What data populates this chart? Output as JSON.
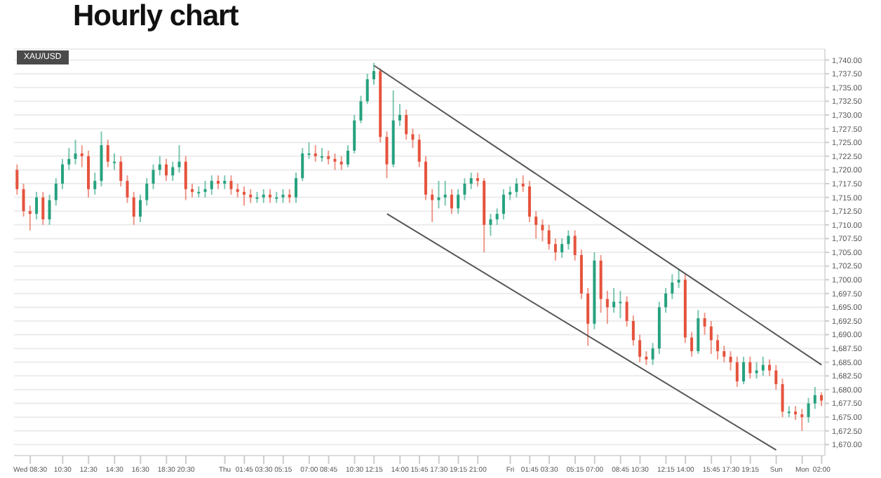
{
  "chart_data": {
    "type": "candlestick",
    "title": "Hourly chart",
    "annotations": [
      "XAU/USD"
    ],
    "categories": [
      null,
      null,
      "Wed 08:30",
      null,
      null,
      null,
      null,
      "10:30",
      null,
      null,
      null,
      "12:30",
      null,
      null,
      null,
      "14:30",
      null,
      null,
      null,
      "16:30",
      null,
      null,
      null,
      "18:30",
      null,
      null,
      "20:30",
      null,
      null,
      null,
      null,
      null,
      "Thu",
      null,
      null,
      "01:45",
      null,
      null,
      "03:30",
      null,
      null,
      "05:15",
      null,
      null,
      null,
      "07:00",
      null,
      null,
      "08:45",
      null,
      null,
      null,
      "10:30",
      null,
      null,
      "12:15",
      null,
      null,
      null,
      "14:00",
      null,
      null,
      "15:45",
      null,
      null,
      "17:30",
      null,
      null,
      "19:15",
      null,
      null,
      "21:00",
      null,
      null,
      null,
      null,
      "Fri",
      null,
      null,
      "01:45",
      null,
      null,
      "03:30",
      null,
      null,
      null,
      "05:15",
      null,
      null,
      "07:00",
      null,
      null,
      null,
      "08:45",
      null,
      null,
      "10:30",
      null,
      null,
      null,
      "12:15",
      null,
      null,
      "14:00",
      null,
      null,
      null,
      "15:45",
      null,
      null,
      "17:30",
      null,
      null,
      "19:15",
      null,
      null,
      null,
      "Sun",
      null,
      null,
      null,
      "Mon",
      null,
      null,
      "02:00"
    ],
    "ohlc": [
      [
        1720,
        1721,
        1715.5,
        1716.5
      ],
      [
        1716.5,
        1717.5,
        1711.5,
        1712.5
      ],
      [
        1712.5,
        1713.5,
        1709,
        1712
      ],
      [
        1712,
        1716,
        1711,
        1715
      ],
      [
        1715,
        1716,
        1710,
        1711
      ],
      [
        1711,
        1715.5,
        1710,
        1714.5
      ],
      [
        1714.5,
        1718.5,
        1713.5,
        1717.5
      ],
      [
        1717.5,
        1722,
        1716.5,
        1721
      ],
      [
        1721,
        1724,
        1720,
        1722
      ],
      [
        1722,
        1725.5,
        1721,
        1723
      ],
      [
        1723,
        1724.5,
        1720.5,
        1722.5
      ],
      [
        1722.5,
        1723.5,
        1715,
        1716.5
      ],
      [
        1716.5,
        1719.5,
        1715.5,
        1718
      ],
      [
        1718,
        1727,
        1717,
        1724.5
      ],
      [
        1724.5,
        1725.5,
        1720.5,
        1721.5
      ],
      [
        1721.5,
        1723,
        1720,
        1721.5
      ],
      [
        1721.5,
        1722.5,
        1717,
        1718
      ],
      [
        1718,
        1719,
        1714,
        1715
      ],
      [
        1715,
        1716,
        1710,
        1711.5
      ],
      [
        1711.5,
        1715.5,
        1710.5,
        1714.5
      ],
      [
        1714.5,
        1718.5,
        1713.5,
        1717.5
      ],
      [
        1717.5,
        1721,
        1716.5,
        1720
      ],
      [
        1720,
        1722.5,
        1719,
        1721
      ],
      [
        1721,
        1722,
        1718,
        1719
      ],
      [
        1719,
        1721.5,
        1718,
        1720.5
      ],
      [
        1720.5,
        1724.5,
        1719.5,
        1721.5
      ],
      [
        1721.5,
        1722.5,
        1714.5,
        1716.5
      ],
      [
        1716.5,
        1717.5,
        1715,
        1716
      ],
      [
        1716,
        1717,
        1715,
        1716
      ],
      [
        1716,
        1718,
        1715,
        1716.5
      ],
      [
        1716.5,
        1719,
        1715.5,
        1718
      ],
      [
        1718,
        1719,
        1716.5,
        1717.5
      ],
      [
        1717.5,
        1719,
        1716.5,
        1718
      ],
      [
        1718,
        1719,
        1715.5,
        1716.5
      ],
      [
        1716.5,
        1717.5,
        1715,
        1716
      ],
      [
        1716,
        1717,
        1713.5,
        1715.5
      ],
      [
        1715.5,
        1716.5,
        1714,
        1715
      ],
      [
        1715,
        1716,
        1714,
        1715
      ],
      [
        1715,
        1716.5,
        1714,
        1715.5
      ],
      [
        1715.5,
        1716.5,
        1714,
        1715
      ],
      [
        1715,
        1716,
        1714,
        1715
      ],
      [
        1715,
        1716.5,
        1714,
        1715.5
      ],
      [
        1715.5,
        1716.5,
        1714,
        1715
      ],
      [
        1715,
        1719.5,
        1714,
        1718.5
      ],
      [
        1718.5,
        1724,
        1718,
        1723
      ],
      [
        1723,
        1725,
        1722,
        1723
      ],
      [
        1723,
        1724.5,
        1721.5,
        1722.5
      ],
      [
        1722.5,
        1724,
        1721.5,
        1722.5
      ],
      [
        1722.5,
        1723.5,
        1721,
        1722
      ],
      [
        1722,
        1723,
        1720,
        1721.5
      ],
      [
        1721.5,
        1722.5,
        1720,
        1721
      ],
      [
        1721,
        1724.5,
        1720.5,
        1723.5
      ],
      [
        1723.5,
        1730,
        1723,
        1729
      ],
      [
        1729,
        1733.5,
        1728.5,
        1732.5
      ],
      [
        1732.5,
        1737.5,
        1732,
        1736.5
      ],
      [
        1736.5,
        1739.5,
        1735.5,
        1738
      ],
      [
        1738,
        1738.5,
        1725,
        1726
      ],
      [
        1726,
        1727,
        1718.5,
        1721
      ],
      [
        1721,
        1734.5,
        1720.5,
        1729
      ],
      [
        1729,
        1732,
        1728,
        1730
      ],
      [
        1730,
        1731,
        1725.5,
        1726.5
      ],
      [
        1726.5,
        1727.5,
        1724,
        1725.5
      ],
      [
        1725.5,
        1726.5,
        1720.5,
        1721.5
      ],
      [
        1721.5,
        1722.5,
        1714.5,
        1715.5
      ],
      [
        1715.5,
        1716.5,
        1710.5,
        1714.5
      ],
      [
        1714.5,
        1718,
        1713,
        1715
      ],
      [
        1715,
        1718,
        1713.5,
        1715.5
      ],
      [
        1715.5,
        1716.5,
        1712,
        1713
      ],
      [
        1713,
        1716.5,
        1712,
        1715.5
      ],
      [
        1715.5,
        1718.5,
        1714.5,
        1717.5
      ],
      [
        1717.5,
        1719.5,
        1716.5,
        1718.5
      ],
      [
        1718.5,
        1719.5,
        1717,
        1718
      ],
      [
        1718,
        1718.5,
        1705,
        1710
      ],
      [
        1710,
        1712,
        1708,
        1711
      ],
      [
        1711,
        1713,
        1710,
        1712
      ],
      [
        1712,
        1716.5,
        1711,
        1715.5
      ],
      [
        1715.5,
        1717,
        1714.5,
        1716
      ],
      [
        1716,
        1718.5,
        1715,
        1717.5
      ],
      [
        1717.5,
        1719,
        1716,
        1717
      ],
      [
        1717,
        1718,
        1710.5,
        1711.5
      ],
      [
        1711.5,
        1712.5,
        1707.5,
        1710
      ],
      [
        1710,
        1711,
        1707,
        1709
      ],
      [
        1709,
        1710,
        1705.5,
        1706.5
      ],
      [
        1706.5,
        1707.5,
        1703.5,
        1705
      ],
      [
        1705,
        1707.5,
        1704,
        1706.5
      ],
      [
        1706.5,
        1709,
        1705.5,
        1708
      ],
      [
        1708,
        1709,
        1703.5,
        1704.5
      ],
      [
        1704.5,
        1705.5,
        1696.5,
        1697.5
      ],
      [
        1697.5,
        1698.5,
        1688,
        1692
      ],
      [
        1692,
        1705,
        1691,
        1703.5
      ],
      [
        1703.5,
        1704.5,
        1694,
        1696.5
      ],
      [
        1696.5,
        1698,
        1692,
        1695
      ],
      [
        1695,
        1698.5,
        1694,
        1696
      ],
      [
        1696,
        1698,
        1693,
        1696
      ],
      [
        1696,
        1697,
        1691.5,
        1692.5
      ],
      [
        1692.5,
        1693.5,
        1688,
        1689
      ],
      [
        1689,
        1690,
        1685,
        1686
      ],
      [
        1686,
        1687,
        1684.5,
        1685.5
      ],
      [
        1685.5,
        1688.5,
        1684.5,
        1687.5
      ],
      [
        1687.5,
        1696,
        1686.5,
        1695
      ],
      [
        1695,
        1698.5,
        1694,
        1697.5
      ],
      [
        1697.5,
        1701,
        1696.5,
        1699.5
      ],
      [
        1699.5,
        1702,
        1698.5,
        1700
      ],
      [
        1700,
        1701,
        1688.5,
        1689.5
      ],
      [
        1689.5,
        1690.5,
        1686,
        1687
      ],
      [
        1687,
        1694.5,
        1686.5,
        1693
      ],
      [
        1693,
        1694,
        1690,
        1691.5
      ],
      [
        1691.5,
        1692.5,
        1686.5,
        1689
      ],
      [
        1689,
        1690,
        1685.5,
        1687
      ],
      [
        1687,
        1688,
        1685,
        1686
      ],
      [
        1686,
        1687,
        1683.5,
        1685
      ],
      [
        1685,
        1686,
        1680.5,
        1681.5
      ],
      [
        1681.5,
        1686,
        1681,
        1685
      ],
      [
        1685,
        1686,
        1682,
        1683
      ],
      [
        1683,
        1685,
        1682,
        1683.5
      ],
      [
        1683.5,
        1686,
        1682.5,
        1684.5
      ],
      [
        1684.5,
        1685.5,
        1682.5,
        1683.5
      ],
      [
        1683.5,
        1684.5,
        1680,
        1681
      ],
      [
        1681,
        1682,
        1675,
        1676
      ],
      [
        1676,
        1677,
        1675,
        1676
      ],
      [
        1676,
        1677,
        1674.5,
        1675.5
      ],
      [
        1675.5,
        1676.5,
        1672.5,
        1675
      ],
      [
        1675,
        1678.5,
        1674,
        1677.5
      ],
      [
        1677.5,
        1680.5,
        1676.5,
        1679
      ],
      [
        1679,
        1679.5,
        1677,
        1678
      ]
    ],
    "colors": [
      "#e5533d",
      "#e5533d",
      "#e5533d",
      "#26a17f",
      "#e5533d",
      "#26a17f",
      "#26a17f",
      "#26a17f",
      "#26a17f",
      "#26a17f",
      "#e5533d",
      "#e5533d",
      "#26a17f",
      "#26a17f",
      "#e5533d",
      "#26a17f",
      "#e5533d",
      "#e5533d",
      "#e5533d",
      "#26a17f",
      "#26a17f",
      "#26a17f",
      "#26a17f",
      "#e5533d",
      "#26a17f",
      "#26a17f",
      "#e5533d",
      "#e5533d",
      "#26a17f",
      "#26a17f",
      "#26a17f",
      "#e5533d",
      "#26a17f",
      "#e5533d",
      "#e5533d",
      "#e5533d",
      "#e5533d",
      "#26a17f",
      "#26a17f",
      "#e5533d",
      "#26a17f",
      "#26a17f",
      "#e5533d",
      "#26a17f",
      "#26a17f",
      "#26a17f",
      "#e5533d",
      "#26a17f",
      "#e5533d",
      "#e5533d",
      "#e5533d",
      "#26a17f",
      "#26a17f",
      "#26a17f",
      "#26a17f",
      "#26a17f",
      "#e5533d",
      "#e5533d",
      "#26a17f",
      "#26a17f",
      "#e5533d",
      "#e5533d",
      "#e5533d",
      "#e5533d",
      "#e5533d",
      "#26a17f",
      "#26a17f",
      "#e5533d",
      "#26a17f",
      "#26a17f",
      "#26a17f",
      "#e5533d",
      "#e5533d",
      "#26a17f",
      "#26a17f",
      "#26a17f",
      "#26a17f",
      "#26a17f",
      "#e5533d",
      "#e5533d",
      "#e5533d",
      "#e5533d",
      "#e5533d",
      "#e5533d",
      "#26a17f",
      "#26a17f",
      "#e5533d",
      "#e5533d",
      "#e5533d",
      "#26a17f",
      "#e5533d",
      "#e5533d",
      "#26a17f",
      "#26a17f",
      "#e5533d",
      "#e5533d",
      "#e5533d",
      "#e5533d",
      "#26a17f",
      "#26a17f",
      "#26a17f",
      "#26a17f",
      "#26a17f",
      "#e5533d",
      "#e5533d",
      "#26a17f",
      "#e5533d",
      "#e5533d",
      "#e5533d",
      "#e5533d",
      "#e5533d",
      "#e5533d",
      "#26a17f",
      "#e5533d",
      "#26a17f",
      "#26a17f",
      "#e5533d",
      "#e5533d",
      "#e5533d",
      "#26a17f",
      "#e5533d",
      "#e5533d",
      "#26a17f",
      "#26a17f",
      "#e5533d"
    ],
    "series": [
      {
        "type": "line",
        "color": "#555555",
        "values": [
          null,
          null,
          null,
          null,
          null,
          null,
          null,
          null,
          null,
          null,
          null,
          null,
          null,
          null,
          null,
          null,
          null,
          null,
          null,
          null,
          null,
          null,
          null,
          null,
          null,
          null,
          null,
          null,
          null,
          null,
          null,
          null,
          null,
          null,
          null,
          null,
          null,
          null,
          null,
          null,
          null,
          null,
          null,
          null,
          null,
          null,
          null,
          null,
          null,
          null,
          null,
          null,
          null,
          null,
          null,
          1739,
          null,
          null,
          null,
          null,
          null,
          null,
          null,
          null,
          null,
          null,
          null,
          null,
          null,
          null,
          null,
          null,
          null,
          null,
          null,
          null,
          null,
          null,
          null,
          null,
          null,
          null,
          null,
          null,
          null,
          null,
          null,
          null,
          null,
          null,
          null,
          null,
          null,
          null,
          null,
          null,
          null,
          null,
          null,
          null,
          null,
          null,
          null,
          null,
          null,
          null,
          null,
          null,
          null,
          null,
          null,
          null,
          null,
          null,
          null,
          null,
          null,
          null,
          null,
          null,
          null,
          null,
          null,
          null,
          1684.5
        ]
      },
      {
        "type": "line",
        "color": "#555555",
        "values": [
          null,
          null,
          null,
          null,
          null,
          null,
          null,
          null,
          null,
          null,
          null,
          null,
          null,
          null,
          null,
          null,
          null,
          null,
          null,
          null,
          null,
          null,
          null,
          null,
          null,
          null,
          null,
          null,
          null,
          null,
          null,
          null,
          null,
          null,
          null,
          null,
          null,
          null,
          null,
          null,
          null,
          null,
          null,
          null,
          null,
          null,
          null,
          null,
          null,
          null,
          null,
          null,
          null,
          null,
          null,
          null,
          null,
          1712,
          null,
          null,
          null,
          null,
          null,
          null,
          null,
          null,
          null,
          null,
          null,
          null,
          null,
          null,
          null,
          null,
          null,
          null,
          null,
          null,
          null,
          null,
          null,
          null,
          null,
          null,
          null,
          null,
          null,
          null,
          null,
          null,
          null,
          null,
          null,
          null,
          null,
          null,
          null,
          null,
          null,
          null,
          null,
          null,
          null,
          null,
          null,
          null,
          null,
          null,
          null,
          null,
          null,
          null,
          null,
          null,
          null,
          null,
          null,
          1669,
          null,
          null,
          null,
          null,
          null,
          null,
          null
        ]
      }
    ],
    "ylim": [
      1668,
      1742
    ],
    "yticks": [
      {
        "value": 1670,
        "label": "1,670.00"
      },
      {
        "value": 1672.5,
        "label": "1,672.50"
      },
      {
        "value": 1675,
        "label": "1,675.00"
      },
      {
        "value": 1677.5,
        "label": "1,677.50"
      },
      {
        "value": 1680,
        "label": "1,680.00"
      },
      {
        "value": 1682.5,
        "label": "1,682.50"
      },
      {
        "value": 1685,
        "label": "1,685.00"
      },
      {
        "value": 1687.5,
        "label": "1,687.50"
      },
      {
        "value": 1690,
        "label": "1,690.00"
      },
      {
        "value": 1692.5,
        "label": "1,692.50"
      },
      {
        "value": 1695,
        "label": "1,695.00"
      },
      {
        "value": 1697.5,
        "label": "1,697.50"
      },
      {
        "value": 1700,
        "label": "1,700.00"
      },
      {
        "value": 1702.5,
        "label": "1,702.50"
      },
      {
        "value": 1705,
        "label": "1,705.00"
      },
      {
        "value": 1707.5,
        "label": "1,707.50"
      },
      {
        "value": 1710,
        "label": "1,710.00"
      },
      {
        "value": 1712.5,
        "label": "1,712.50"
      },
      {
        "value": 1715,
        "label": "1,715.00"
      },
      {
        "value": 1717.5,
        "label": "1,717.50"
      },
      {
        "value": 1720,
        "label": "1,720.00"
      },
      {
        "value": 1722.5,
        "label": "1,722.50"
      },
      {
        "value": 1725,
        "label": "1,725.00"
      },
      {
        "value": 1727.5,
        "label": "1,727.50"
      },
      {
        "value": 1730,
        "label": "1,730.00"
      },
      {
        "value": 1732.5,
        "label": "1,732.50"
      },
      {
        "value": 1735,
        "label": "1,735.00"
      },
      {
        "value": 1737.5,
        "label": "1,737.50"
      },
      {
        "value": 1740,
        "label": "1,740.00"
      }
    ],
    "grid": "y"
  }
}
